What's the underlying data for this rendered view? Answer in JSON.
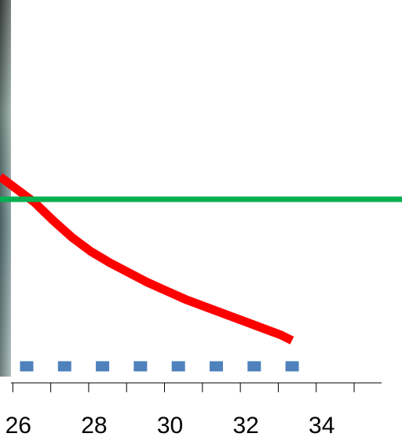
{
  "chart_data": {
    "type": "line",
    "title": "",
    "xlabel": "",
    "ylabel": "",
    "xlim": [
      25.6,
      36.2
    ],
    "ylim": [
      0,
      10
    ],
    "x_ticks": [
      {
        "value": 26,
        "label": "26"
      },
      {
        "value": 28,
        "label": "28"
      },
      {
        "value": 30,
        "label": "30"
      },
      {
        "value": 32,
        "label": "32"
      },
      {
        "value": 34,
        "label": "34"
      }
    ],
    "grid": false,
    "legend": "none",
    "series": [
      {
        "style": "line",
        "color": "#FF0000",
        "x": [
          25.6,
          26.0,
          26.5,
          27.0,
          27.5,
          28.0,
          28.5,
          29.0,
          29.5,
          30.0,
          30.5,
          31.0,
          31.5,
          32.0,
          32.5,
          33.0,
          33.3
        ],
        "y": [
          6.8,
          6.4,
          5.9,
          5.25,
          4.65,
          4.15,
          3.75,
          3.4,
          3.05,
          2.75,
          2.45,
          2.2,
          1.95,
          1.7,
          1.45,
          1.2,
          1.0
        ]
      },
      {
        "style": "line",
        "color": "#00B050",
        "x": [
          25.6,
          36.2
        ],
        "y": [
          6.0,
          6.0
        ]
      },
      {
        "style": "square-markers",
        "color": "#4F81BD",
        "x": [
          26.5,
          27.5,
          28.5,
          29.5,
          30.5,
          31.5,
          32.5,
          33.5
        ],
        "y": [
          0.1,
          0.1,
          0.1,
          0.1,
          0.1,
          0.1,
          0.1,
          0.1
        ]
      }
    ]
  }
}
